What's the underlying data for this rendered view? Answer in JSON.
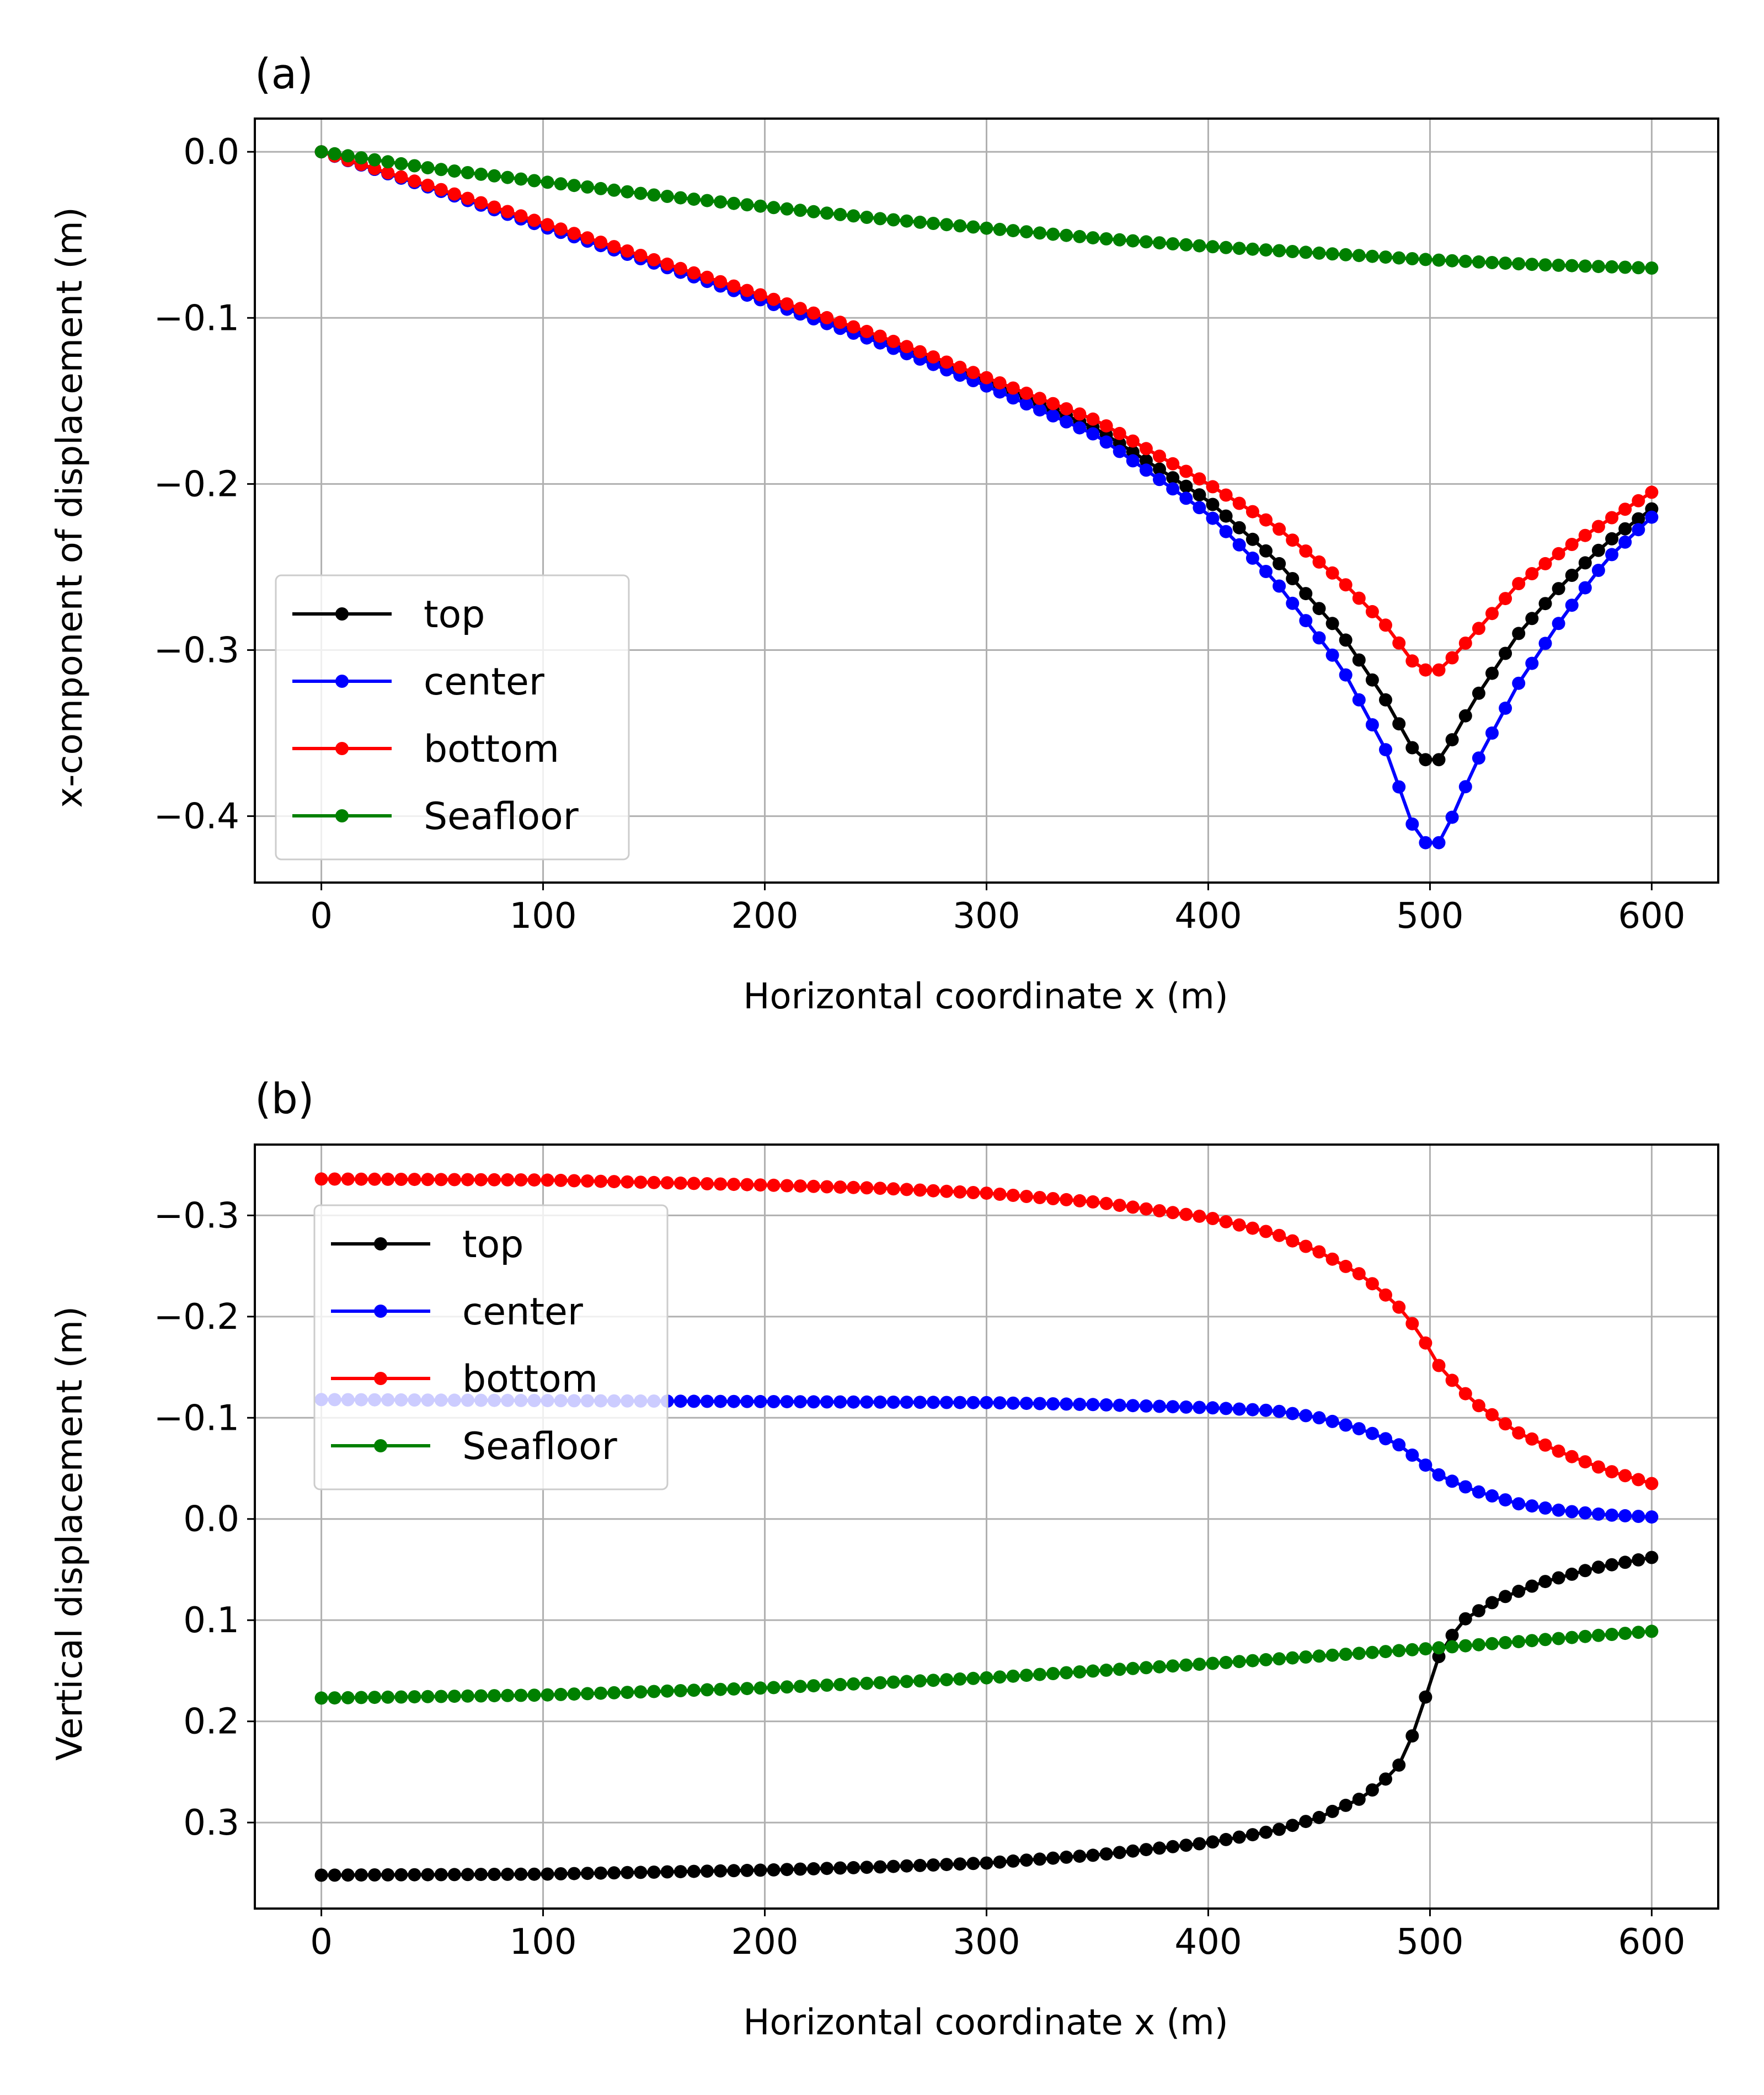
{
  "chart_data": [
    {
      "type": "line",
      "panel_label": "(a)",
      "xlabel": "Horizontal coordinate x (m)",
      "ylabel": "x-component of displacement (m)",
      "xlim": [
        -30,
        630
      ],
      "ylim": [
        -0.44,
        0.02
      ],
      "y_inverted": false,
      "grid": true,
      "legend_position": "lower-left",
      "xticks": [
        0,
        100,
        200,
        300,
        400,
        500,
        600
      ],
      "xtick_labels": [
        "0",
        "100",
        "200",
        "300",
        "400",
        "500",
        "600"
      ],
      "yticks": [
        0.0,
        -0.1,
        -0.2,
        -0.3,
        -0.4
      ],
      "ytick_labels": [
        "0.0",
        "−0.1",
        "−0.2",
        "−0.3",
        "−0.4"
      ],
      "series": [
        {
          "name": "top",
          "color": "#000000",
          "points": [
            [
              0,
              0.0
            ],
            [
              50,
              -0.022
            ],
            [
              100,
              -0.044
            ],
            [
              150,
              -0.066
            ],
            [
              200,
              -0.088
            ],
            [
              250,
              -0.112
            ],
            [
              300,
              -0.138
            ],
            [
              350,
              -0.167
            ],
            [
              400,
              -0.21
            ],
            [
              430,
              -0.245
            ],
            [
              460,
              -0.29
            ],
            [
              480,
              -0.33
            ],
            [
              495,
              -0.366
            ],
            [
              505,
              -0.366
            ],
            [
              520,
              -0.33
            ],
            [
              540,
              -0.29
            ],
            [
              560,
              -0.26
            ],
            [
              580,
              -0.235
            ],
            [
              600,
              -0.215
            ]
          ]
        },
        {
          "name": "center",
          "color": "#0000ff",
          "points": [
            [
              0,
              0.0
            ],
            [
              50,
              -0.022
            ],
            [
              100,
              -0.045
            ],
            [
              150,
              -0.067
            ],
            [
              200,
              -0.09
            ],
            [
              250,
              -0.114
            ],
            [
              300,
              -0.141
            ],
            [
              350,
              -0.171
            ],
            [
              400,
              -0.218
            ],
            [
              430,
              -0.258
            ],
            [
              460,
              -0.31
            ],
            [
              480,
              -0.36
            ],
            [
              495,
              -0.416
            ],
            [
              505,
              -0.416
            ],
            [
              520,
              -0.37
            ],
            [
              540,
              -0.32
            ],
            [
              560,
              -0.28
            ],
            [
              580,
              -0.245
            ],
            [
              600,
              -0.22
            ]
          ]
        },
        {
          "name": "bottom",
          "color": "#ff0000",
          "points": [
            [
              0,
              0.0
            ],
            [
              50,
              -0.021
            ],
            [
              100,
              -0.043
            ],
            [
              150,
              -0.065
            ],
            [
              200,
              -0.087
            ],
            [
              250,
              -0.11
            ],
            [
              300,
              -0.136
            ],
            [
              350,
              -0.162
            ],
            [
              400,
              -0.2
            ],
            [
              430,
              -0.225
            ],
            [
              460,
              -0.258
            ],
            [
              480,
              -0.285
            ],
            [
              495,
              -0.312
            ],
            [
              505,
              -0.312
            ],
            [
              520,
              -0.29
            ],
            [
              540,
              -0.26
            ],
            [
              560,
              -0.24
            ],
            [
              580,
              -0.222
            ],
            [
              600,
              -0.205
            ]
          ]
        },
        {
          "name": "Seafloor",
          "color": "#008000",
          "points": [
            [
              0,
              0.0
            ],
            [
              50,
              -0.01
            ],
            [
              100,
              -0.018
            ],
            [
              150,
              -0.026
            ],
            [
              200,
              -0.033
            ],
            [
              250,
              -0.04
            ],
            [
              300,
              -0.046
            ],
            [
              350,
              -0.052
            ],
            [
              400,
              -0.057
            ],
            [
              450,
              -0.061
            ],
            [
              500,
              -0.065
            ],
            [
              550,
              -0.068
            ],
            [
              600,
              -0.07
            ]
          ]
        }
      ]
    },
    {
      "type": "line",
      "panel_label": "(b)",
      "xlabel": "Horizontal coordinate x (m)",
      "ylabel": "Vertical displacement (m)",
      "xlim": [
        -30,
        630
      ],
      "ylim": [
        0.385,
        -0.37
      ],
      "y_inverted": true,
      "grid": true,
      "legend_position": "upper-left",
      "xticks": [
        0,
        100,
        200,
        300,
        400,
        500,
        600
      ],
      "xtick_labels": [
        "0",
        "100",
        "200",
        "300",
        "400",
        "500",
        "600"
      ],
      "yticks": [
        -0.3,
        -0.2,
        -0.1,
        0.0,
        0.1,
        0.2,
        0.3
      ],
      "ytick_labels": [
        "−0.3",
        "−0.2",
        "−0.1",
        "0.0",
        "0.1",
        "0.2",
        "0.3"
      ],
      "series": [
        {
          "name": "top",
          "color": "#000000",
          "points": [
            [
              0,
              0.352
            ],
            [
              100,
              0.351
            ],
            [
              200,
              0.347
            ],
            [
              250,
              0.344
            ],
            [
              300,
              0.34
            ],
            [
              350,
              0.332
            ],
            [
              400,
              0.32
            ],
            [
              430,
              0.308
            ],
            [
              450,
              0.295
            ],
            [
              470,
              0.275
            ],
            [
              485,
              0.248
            ],
            [
              495,
              0.2
            ],
            [
              500,
              0.16
            ],
            [
              505,
              0.13
            ],
            [
              515,
              0.1
            ],
            [
              530,
              0.08
            ],
            [
              550,
              0.063
            ],
            [
              575,
              0.048
            ],
            [
              600,
              0.038
            ]
          ]
        },
        {
          "name": "center",
          "color": "#0000ff",
          "points": [
            [
              0,
              -0.118
            ],
            [
              100,
              -0.117
            ],
            [
              200,
              -0.116
            ],
            [
              300,
              -0.115
            ],
            [
              350,
              -0.113
            ],
            [
              400,
              -0.11
            ],
            [
              430,
              -0.107
            ],
            [
              450,
              -0.1
            ],
            [
              470,
              -0.088
            ],
            [
              485,
              -0.075
            ],
            [
              495,
              -0.058
            ],
            [
              505,
              -0.042
            ],
            [
              520,
              -0.028
            ],
            [
              540,
              -0.015
            ],
            [
              560,
              -0.008
            ],
            [
              580,
              -0.004
            ],
            [
              600,
              -0.002
            ]
          ]
        },
        {
          "name": "bottom",
          "color": "#ff0000",
          "points": [
            [
              0,
              -0.336
            ],
            [
              100,
              -0.335
            ],
            [
              200,
              -0.33
            ],
            [
              250,
              -0.327
            ],
            [
              300,
              -0.322
            ],
            [
              350,
              -0.313
            ],
            [
              400,
              -0.298
            ],
            [
              430,
              -0.282
            ],
            [
              450,
              -0.264
            ],
            [
              470,
              -0.24
            ],
            [
              485,
              -0.212
            ],
            [
              495,
              -0.185
            ],
            [
              505,
              -0.148
            ],
            [
              520,
              -0.115
            ],
            [
              540,
              -0.085
            ],
            [
              560,
              -0.065
            ],
            [
              580,
              -0.048
            ],
            [
              600,
              -0.035
            ]
          ]
        },
        {
          "name": "Seafloor",
          "color": "#008000",
          "points": [
            [
              0,
              0.177
            ],
            [
              100,
              0.174
            ],
            [
              200,
              0.167
            ],
            [
              300,
              0.157
            ],
            [
              400,
              0.143
            ],
            [
              500,
              0.128
            ],
            [
              600,
              0.111
            ]
          ]
        }
      ]
    }
  ]
}
